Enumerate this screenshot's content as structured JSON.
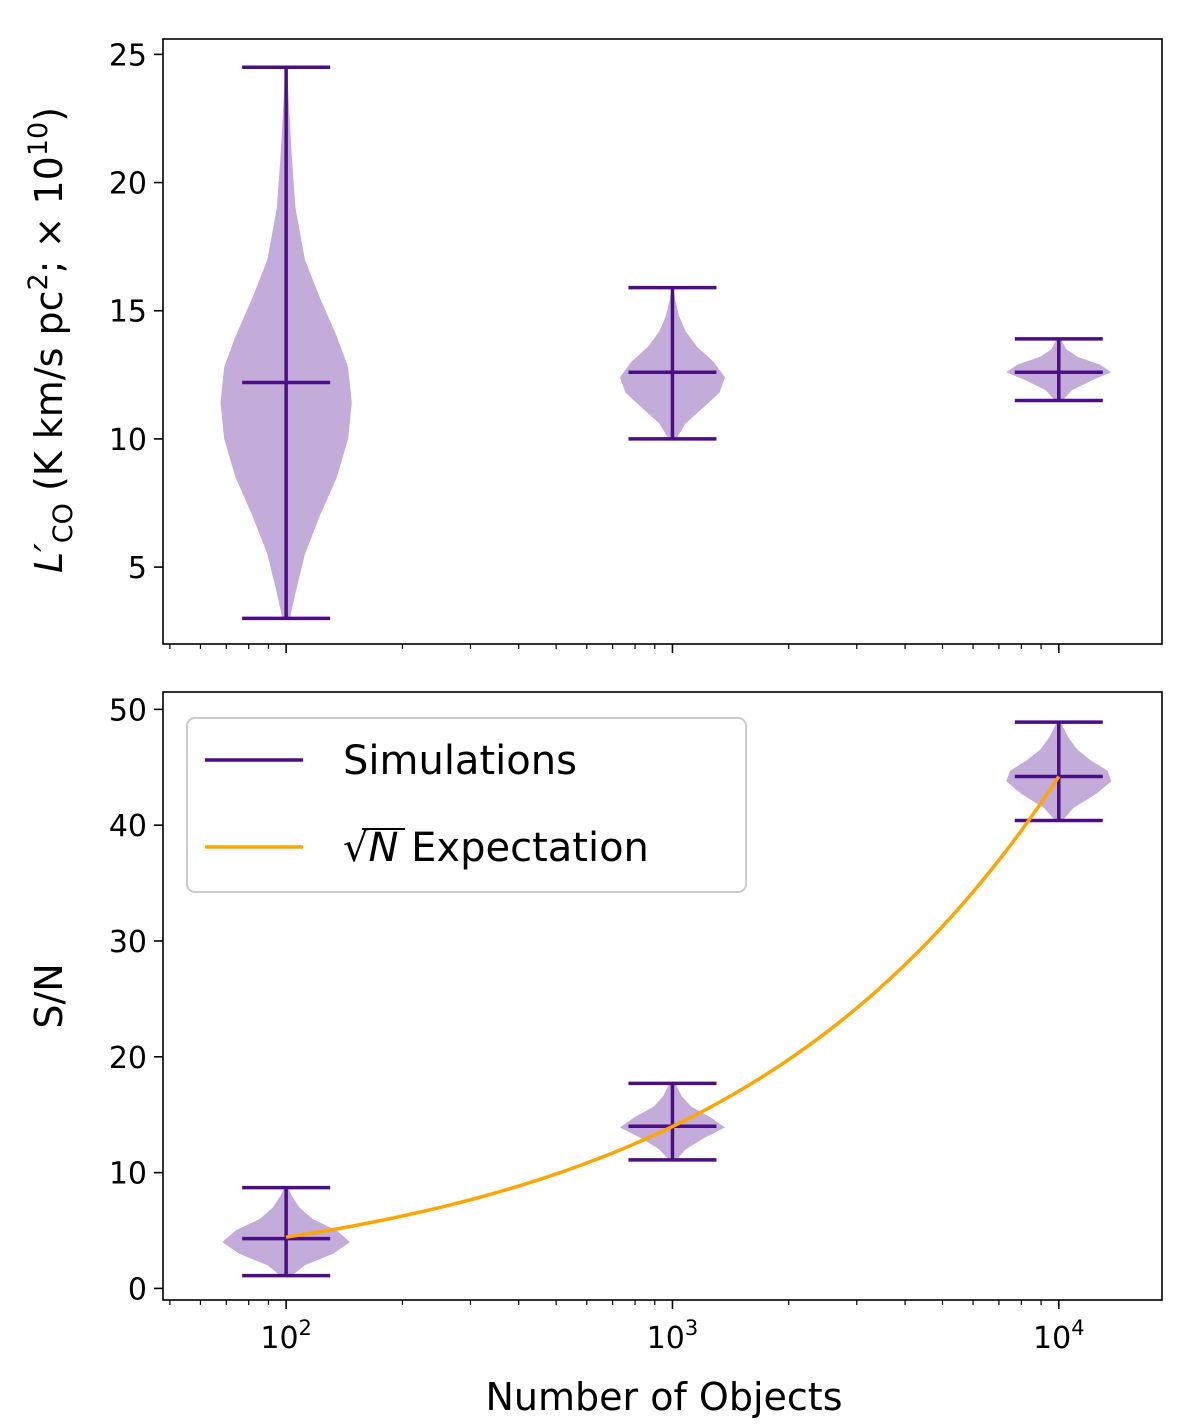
{
  "chart_data": [
    {
      "type": "violin",
      "ylabel_main": "L′",
      "ylabel_sub": "CO",
      "ylabel_rest": " (K km/s pc",
      "ylabel_sup": "2",
      "ylabel_tail": ";  × 10",
      "ylabel_sup2": "10",
      "ylabel_end": ")",
      "ylim": [
        2,
        25.6
      ],
      "xscale": "log",
      "xlim": [
        48,
        18500
      ],
      "yticks": [
        5,
        10,
        15,
        20,
        25
      ],
      "ytick_labels": [
        "5",
        "10",
        "15",
        "20",
        "25"
      ],
      "color": "#4b0f83",
      "fill_color": "#c3acd9",
      "violins": [
        {
          "x": 100,
          "min": 3.0,
          "max": 24.5,
          "median": 12.2,
          "width": 0.17,
          "profile": [
            [
              3.0,
              0.02
            ],
            [
              4.0,
              0.05
            ],
            [
              5.5,
              0.1
            ],
            [
              7.0,
              0.18
            ],
            [
              8.5,
              0.27
            ],
            [
              10.0,
              0.33
            ],
            [
              11.4,
              0.35
            ],
            [
              12.8,
              0.33
            ],
            [
              14.0,
              0.27
            ],
            [
              15.5,
              0.18
            ],
            [
              17.0,
              0.1
            ],
            [
              19.0,
              0.05
            ],
            [
              21.0,
              0.03
            ],
            [
              23.0,
              0.015
            ],
            [
              24.5,
              0.005
            ]
          ]
        },
        {
          "x": 1000,
          "min": 10.0,
          "max": 15.9,
          "median": 12.6,
          "width": 0.17,
          "profile": [
            [
              10.0,
              0.02
            ],
            [
              10.6,
              0.07
            ],
            [
              11.2,
              0.16
            ],
            [
              11.8,
              0.25
            ],
            [
              12.4,
              0.28
            ],
            [
              13.0,
              0.22
            ],
            [
              13.6,
              0.13
            ],
            [
              14.2,
              0.07
            ],
            [
              14.8,
              0.035
            ],
            [
              15.4,
              0.015
            ],
            [
              15.9,
              0.005
            ]
          ]
        },
        {
          "x": 10000,
          "min": 11.5,
          "max": 13.9,
          "median": 12.6,
          "width": 0.17,
          "profile": [
            [
              11.5,
              0.02
            ],
            [
              11.9,
              0.07
            ],
            [
              12.3,
              0.18
            ],
            [
              12.6,
              0.28
            ],
            [
              12.9,
              0.22
            ],
            [
              13.2,
              0.1
            ],
            [
              13.5,
              0.04
            ],
            [
              13.9,
              0.01
            ]
          ]
        }
      ]
    },
    {
      "type": "violin",
      "xlabel": "Number of Objects",
      "ylabel": "S/N",
      "ylim": [
        -1.0,
        51.5
      ],
      "xscale": "log",
      "xlim": [
        48,
        18500
      ],
      "yticks": [
        0,
        10,
        20,
        30,
        40,
        50
      ],
      "ytick_labels": [
        "0",
        "10",
        "20",
        "30",
        "40",
        "50"
      ],
      "xticks": [
        100,
        1000,
        10000
      ],
      "xtick_base": [
        "10",
        "10",
        "10"
      ],
      "xtick_exp": [
        "2",
        "3",
        "4"
      ],
      "color": "#4b0f83",
      "fill_color": "#c3acd9",
      "curve_color": "#ffa500",
      "violins": [
        {
          "x": 100,
          "min": 1.1,
          "max": 8.7,
          "median": 4.3,
          "width": 0.17,
          "profile": [
            [
              1.1,
              0.03
            ],
            [
              2.0,
              0.1
            ],
            [
              3.0,
              0.25
            ],
            [
              4.0,
              0.34
            ],
            [
              5.0,
              0.27
            ],
            [
              6.0,
              0.14
            ],
            [
              7.0,
              0.07
            ],
            [
              8.0,
              0.03
            ],
            [
              8.7,
              0.01
            ]
          ]
        },
        {
          "x": 1000,
          "min": 11.1,
          "max": 17.7,
          "median": 14.0,
          "width": 0.17,
          "profile": [
            [
              11.1,
              0.02
            ],
            [
              12.0,
              0.07
            ],
            [
              13.0,
              0.17
            ],
            [
              13.9,
              0.28
            ],
            [
              14.8,
              0.2
            ],
            [
              15.7,
              0.1
            ],
            [
              16.6,
              0.05
            ],
            [
              17.7,
              0.015
            ]
          ]
        },
        {
          "x": 10000,
          "min": 40.4,
          "max": 48.9,
          "median": 44.2,
          "width": 0.17,
          "profile": [
            [
              40.4,
              0.02
            ],
            [
              41.5,
              0.08
            ],
            [
              42.7,
              0.2
            ],
            [
              43.8,
              0.28
            ],
            [
              44.7,
              0.26
            ],
            [
              45.6,
              0.17
            ],
            [
              46.5,
              0.1
            ],
            [
              47.6,
              0.05
            ],
            [
              48.9,
              0.01
            ]
          ]
        }
      ],
      "curve": {
        "x_start": 100,
        "x_end": 10000,
        "y_at_start": 4.42
      },
      "legend": [
        {
          "label": "Simulations",
          "color": "#4b0f83"
        },
        {
          "label_sqrt": "√",
          "label_n": "N",
          "label_rest": " Expectation",
          "color": "#ffa500"
        }
      ]
    }
  ]
}
